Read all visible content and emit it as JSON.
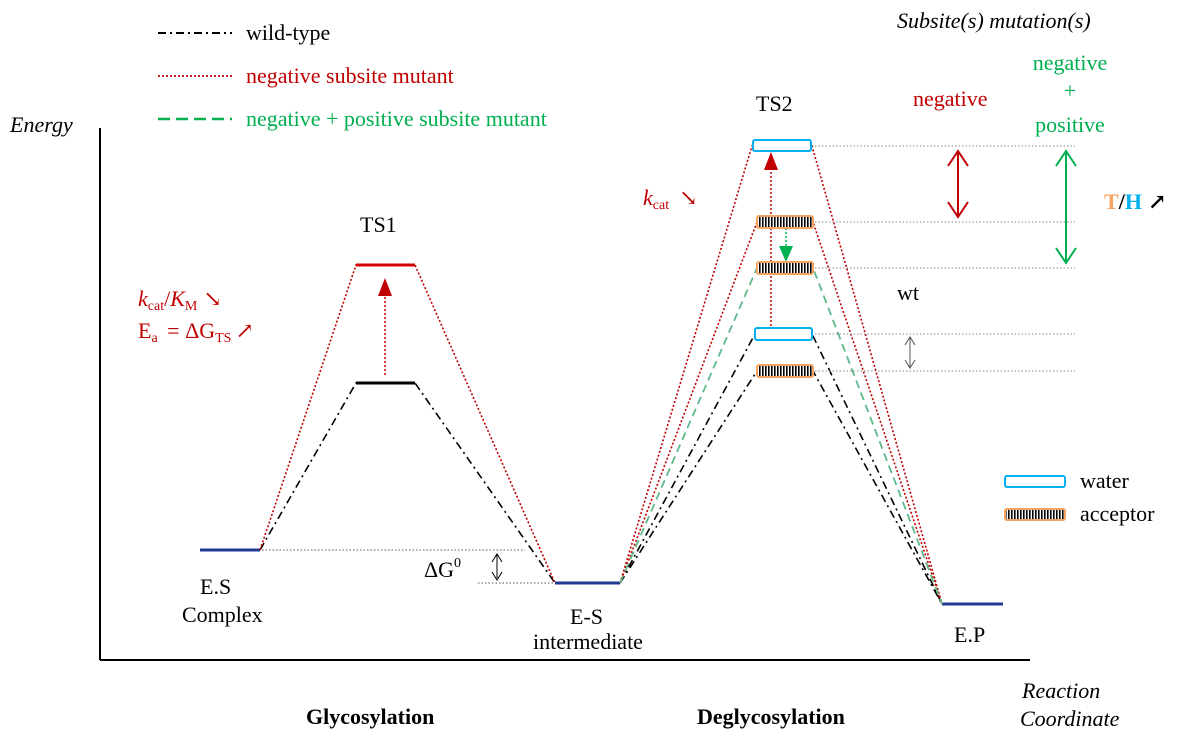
{
  "legend": {
    "wildtype": "wild-type",
    "negative": "negative subsite mutant",
    "negpos": "negative + positive subsite mutant"
  },
  "axis": {
    "y_label": "Energy",
    "x_label_line1": "Reaction",
    "x_label_line2": "Coordinate"
  },
  "phases": {
    "glycosylation": "Glycosylation",
    "deglycosylation": "Deglycosylation"
  },
  "states": {
    "es_line1": "E.S",
    "es_line2": "Complex",
    "ts1": "TS1",
    "ts2": "TS2",
    "esi_line1": "E-S",
    "esi_line2": "intermediate",
    "ep": "E.P"
  },
  "annotations": {
    "dg0": "ΔG",
    "dg0_sup": "0",
    "kcat": "k",
    "kcat_sub": "cat",
    "km_sep": "/",
    "km": "K",
    "km_sub": "M",
    "down_arrow": "↘",
    "up_arrow": "↗",
    "ea": "E",
    "ea_sub": "a",
    "ea_eq": " = ΔG",
    "ea_sub2": "TS",
    "wt": "wt"
  },
  "subsite": {
    "title": "Subsite(s) mutation(s)",
    "negative": "negative",
    "np_line1": "negative",
    "np_line2": "+",
    "np_line3": "positive",
    "t": "T",
    "slash": "/",
    "h": "H",
    "arrow": "↗"
  },
  "box_legend": {
    "water": "water",
    "acceptor": "acceptor"
  },
  "colors": {
    "red": "#c00000",
    "green": "#00b050",
    "navy": "#1f3a93",
    "water": "#00b0f0",
    "acceptor": "#f4a460",
    "orange_t": "#f4a460",
    "blue_h": "#00b0f0"
  }
}
